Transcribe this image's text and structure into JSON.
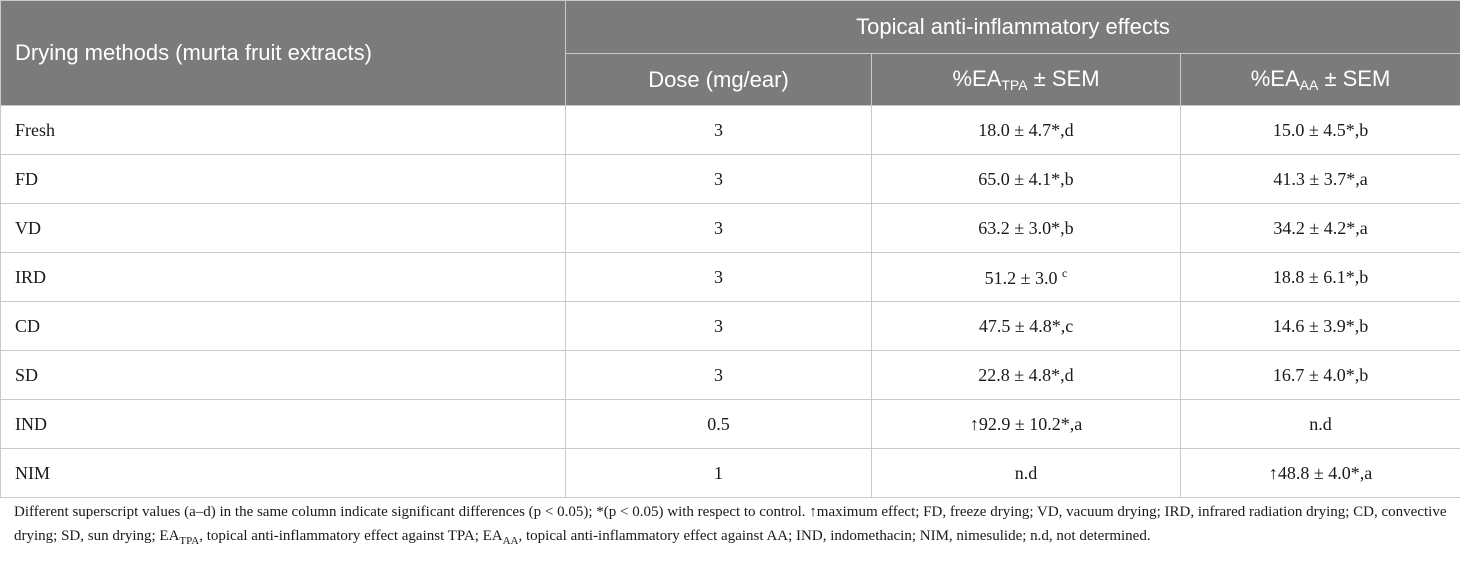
{
  "header": {
    "row_header": "Drying methods (murta fruit extracts)",
    "group_title": "Topical anti-inflammatory effects",
    "col_dose": "Dose (mg/ear)",
    "col_tpa": {
      "prefix": "%EA",
      "sub": "TPA",
      "suffix": " ± SEM"
    },
    "col_aa": {
      "prefix": "%EA",
      "sub": "AA",
      "suffix": " ± SEM"
    }
  },
  "rows": [
    {
      "method": "Fresh",
      "dose": "3",
      "tpa": "18.0 ± 4.7*,d",
      "aa": "15.0 ± 4.5*,b"
    },
    {
      "method": "FD",
      "dose": "3",
      "tpa": "65.0 ± 4.1*,b",
      "aa": "41.3 ± 3.7*,a"
    },
    {
      "method": "VD",
      "dose": "3",
      "tpa": "63.2 ± 3.0*,b",
      "aa": "34.2 ± 4.2*,a"
    },
    {
      "method": "IRD",
      "dose": "3",
      "tpa": "51.2 ± 3.0",
      "tpa_sup": "c",
      "aa": "18.8 ± 6.1*,b"
    },
    {
      "method": "CD",
      "dose": "3",
      "tpa": "47.5 ± 4.8*,c",
      "aa": "14.6 ± 3.9*,b"
    },
    {
      "method": "SD",
      "dose": "3",
      "tpa": "22.8 ± 4.8*,d",
      "aa": "16.7 ± 4.0*,b"
    },
    {
      "method": "IND",
      "dose": "0.5",
      "tpa": "↑92.9 ± 10.2*,a",
      "aa": "n.d"
    },
    {
      "method": "NIM",
      "dose": "1",
      "tpa": "n.d",
      "aa": "↑48.8 ± 4.0*,a"
    }
  ],
  "footnote": {
    "part1": "Different superscript values (a–d) in the same column indicate significant differences (p < 0.05); *(p < 0.05) with respect to control. ↑maximum effect; FD, freeze drying; VD, vacuum drying; IRD, infrared radiation drying; CD, convective drying; SD, sun drying; EA",
    "sub1": "TPA",
    "part2": ", topical anti-inflammatory effect against TPA; EA",
    "sub2": "AA",
    "part3": ", topical anti-inflammatory effect against AA; IND, indomethacin; NIM, nimesulide; n.d, not determined."
  }
}
